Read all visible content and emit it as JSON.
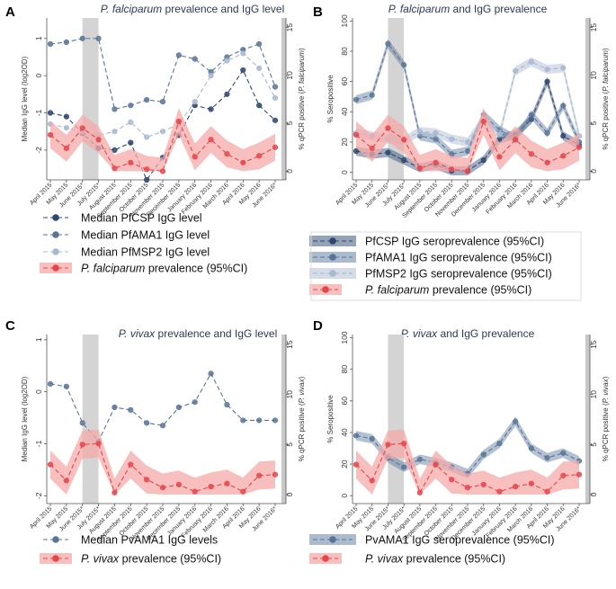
{
  "months": [
    "April 2015",
    "May 2015",
    "June 2015*",
    "July 2015*",
    "August 2015",
    "September 2015",
    "October 2015",
    "November 2015",
    "December 2015",
    "January 2016",
    "February 2016",
    "March 2016",
    "April 2016",
    "May 2016",
    "June 2016*"
  ],
  "colors": {
    "csp": "#2c4770",
    "ama1": "#587599",
    "msp2": "#a8b9d0",
    "red": "#e8454a",
    "redband": "#f6aaaa",
    "shade": "#d4d4d4",
    "title": "#2b3a58"
  },
  "chart_data": [
    {
      "panel": "A",
      "type": "line",
      "title": "P. falciparum prevalence and IgG level",
      "title_parts": [
        "P. falciparum",
        " prevalence and IgG level"
      ],
      "ylabel": "Median IgG level (log2OD)",
      "y2label": "% qPCR positive (P. falciparum)",
      "y2label_parts": [
        "% qPCR positive (",
        "P. falciparum",
        ")"
      ],
      "ylim": [
        -2.8,
        1.55
      ],
      "yticks": [
        -2,
        -1,
        0,
        1
      ],
      "y2lim": [
        -0.9,
        16
      ],
      "y2ticks": [
        0,
        5,
        10,
        15
      ],
      "shaded_months": [
        2,
        3
      ],
      "series": [
        {
          "name": "Median PfCSP IgG level",
          "color_key": "csp",
          "axis": "left",
          "values": [
            -1.0,
            -1.1,
            -1.55,
            -1.95,
            -2.0,
            -1.8,
            -2.8,
            -2.2,
            -1.6,
            -0.8,
            -0.9,
            -0.5,
            0.15,
            -0.8,
            -1.2
          ]
        },
        {
          "name": "Median PfAMA1 IgG level",
          "color_key": "ama1",
          "axis": "left",
          "values": [
            0.85,
            0.9,
            1.0,
            1.0,
            -0.9,
            -0.8,
            -0.65,
            -0.7,
            0.55,
            0.45,
            0.1,
            0.5,
            0.7,
            0.85,
            -0.3
          ]
        },
        {
          "name": "Median PfMSP2 IgG level",
          "color_key": "msp2",
          "axis": "left",
          "values": [
            -1.3,
            -1.4,
            -1.5,
            -1.6,
            -1.5,
            -1.25,
            -1.65,
            -1.5,
            -1.3,
            -0.7,
            0.0,
            0.4,
            0.6,
            0.2,
            -0.6
          ]
        },
        {
          "name": "P. falciparum prevalence",
          "color_key": "red",
          "axis": "right",
          "band": true,
          "values": [
            3.8,
            2.4,
            4.5,
            3.3,
            0.3,
            0.9,
            0.2,
            0.0,
            5.2,
            1.5,
            3.3,
            1.8,
            0.9,
            1.6,
            2.5
          ]
        }
      ],
      "legend": [
        {
          "parts": [
            "Median ",
            "Pf",
            "CSP IgG level"
          ],
          "style": "dash",
          "color_key": "csp"
        },
        {
          "parts": [
            "Median ",
            "Pf",
            "AMA1 IgG level"
          ],
          "style": "dash",
          "color_key": "ama1"
        },
        {
          "parts": [
            "Median ",
            "Pf",
            "MSP2 IgG level"
          ],
          "style": "dash",
          "color_key": "msp2"
        },
        {
          "parts": [
            "",
            "P. falciparum",
            " prevalence (95%CI)"
          ],
          "style": "band",
          "color_key": "red"
        }
      ]
    },
    {
      "panel": "B",
      "type": "line",
      "title": "P. falciparum and IgG prevalence",
      "title_parts": [
        "P. falciparum",
        " and IgG prevalence"
      ],
      "ylabel": "% Seropositive",
      "y2label": "% qPCR positive (P. falciparum)",
      "y2label_parts": [
        "% qPCR positive (",
        "P. falciparum",
        ")"
      ],
      "ylim": [
        -5,
        102
      ],
      "yticks": [
        0,
        20,
        40,
        60,
        80,
        100
      ],
      "y2lim": [
        -0.9,
        16
      ],
      "y2ticks": [
        0,
        5,
        10,
        15
      ],
      "shaded_months": [
        2,
        3
      ],
      "series": [
        {
          "name": "PfCSP IgG seroprevalence",
          "color_key": "csp",
          "axis": "left",
          "values": [
            14,
            12,
            13,
            8,
            3,
            5,
            1,
            1,
            8,
            22,
            25,
            35,
            60,
            24,
            18
          ]
        },
        {
          "name": "PfAMA1 IgG seroprevalence",
          "color_key": "ama1",
          "axis": "left",
          "values": [
            48,
            51,
            85,
            71,
            24,
            22,
            12,
            14,
            38,
            28,
            22,
            38,
            26,
            44,
            20
          ]
        },
        {
          "name": "PfMSP2 IgG seroprevalence",
          "color_key": "msp2",
          "axis": "left",
          "values": [
            26,
            24,
            22,
            21,
            27,
            26,
            22,
            20,
            35,
            25,
            67,
            73,
            68,
            69,
            24
          ]
        },
        {
          "name": "P. falciparum prevalence",
          "color_key": "red",
          "axis": "right",
          "band": true,
          "values": [
            3.8,
            2.4,
            4.5,
            3.3,
            0.3,
            0.9,
            0.2,
            0.0,
            5.2,
            1.5,
            3.3,
            1.8,
            0.9,
            1.6,
            2.5
          ]
        }
      ],
      "legend": [
        {
          "parts": [
            "",
            "Pf",
            "CSP IgG seroprevalence (95%CI)"
          ],
          "style": "sband",
          "color_key": "csp"
        },
        {
          "parts": [
            "",
            "Pf",
            "AMA1 IgG seroprevalence (95%CI)"
          ],
          "style": "sband",
          "color_key": "ama1"
        },
        {
          "parts": [
            "",
            "Pf",
            "MSP2 IgG seroprevalence (95%CI)"
          ],
          "style": "sband",
          "color_key": "msp2"
        },
        {
          "parts": [
            "",
            "P. falciparum",
            " prevalence (95%CI)"
          ],
          "style": "band",
          "color_key": "red"
        }
      ]
    },
    {
      "panel": "C",
      "type": "line",
      "title": "P. vivax prevalence and IgG level",
      "title_parts": [
        "P. vivax",
        " prevalence and IgG level"
      ],
      "ylabel": "Median IgG level (log2OD)",
      "y2label": "% qPCR positive (P. vivax)",
      "y2label_parts": [
        "% qPCR positive (",
        "P. vivax",
        ")"
      ],
      "ylim": [
        -2.15,
        1.1
      ],
      "yticks": [
        -2,
        -1,
        0,
        1
      ],
      "y2lim": [
        -0.9,
        16
      ],
      "y2ticks": [
        0,
        5,
        10,
        15
      ],
      "shaded_months": [
        2,
        3
      ],
      "series": [
        {
          "name": "Median PvAMA1 IgG levels",
          "color_key": "ama1",
          "axis": "left",
          "values": [
            0.15,
            0.1,
            -0.6,
            -0.95,
            -0.3,
            -0.35,
            -0.6,
            -0.65,
            -0.3,
            -0.2,
            0.35,
            -0.25,
            -0.55,
            -0.55,
            -0.55
          ]
        },
        {
          "name": "P. vivax prevalence",
          "color_key": "red",
          "axis": "right",
          "band": true,
          "values": [
            3.0,
            1.4,
            5.0,
            5.1,
            0.2,
            3.0,
            1.5,
            0.7,
            1.0,
            0.3,
            0.8,
            1.1,
            0.3,
            1.9,
            2.0
          ]
        }
      ],
      "legend": [
        {
          "parts": [
            "Median ",
            "Pv",
            "AMA1 IgG levels"
          ],
          "style": "dash",
          "color_key": "ama1"
        },
        {
          "parts": [
            "",
            "P. vivax",
            " prevalence (95%CI)"
          ],
          "style": "band",
          "color_key": "red"
        }
      ]
    },
    {
      "panel": "D",
      "type": "line",
      "title": "P. vivax and IgG prevalence",
      "title_parts": [
        "P. vivax",
        " and IgG prevalence"
      ],
      "ylabel": "% Seropositive",
      "y2label": "% qPCR positive (P. vivax)",
      "y2label_parts": [
        "% qPCR positive (",
        "P. vivax",
        ")"
      ],
      "ylim": [
        -5,
        102
      ],
      "yticks": [
        0,
        20,
        40,
        60,
        80,
        100
      ],
      "y2lim": [
        -0.9,
        16
      ],
      "y2ticks": [
        0,
        5,
        10,
        15
      ],
      "shaded_months": [
        2,
        3
      ],
      "series": [
        {
          "name": "PvAMA1 IgG seroprevalence",
          "color_key": "ama1",
          "axis": "left",
          "values": [
            38,
            36,
            24,
            18,
            23,
            21,
            18,
            14,
            26,
            33,
            47,
            30,
            24,
            27,
            22
          ]
        },
        {
          "name": "P. vivax prevalence",
          "color_key": "red",
          "axis": "right",
          "band": true,
          "values": [
            3.0,
            1.4,
            5.0,
            5.1,
            0.2,
            3.0,
            1.5,
            0.7,
            1.0,
            0.3,
            0.8,
            1.1,
            0.3,
            1.9,
            2.0
          ]
        }
      ],
      "legend": [
        {
          "parts": [
            "",
            "Pv",
            "AMA1 IgG seroprevalence (95%CI)"
          ],
          "style": "sband",
          "color_key": "ama1"
        },
        {
          "parts": [
            "",
            "P. vivax",
            " prevalence (95%CI)"
          ],
          "style": "band",
          "color_key": "red"
        }
      ]
    }
  ]
}
